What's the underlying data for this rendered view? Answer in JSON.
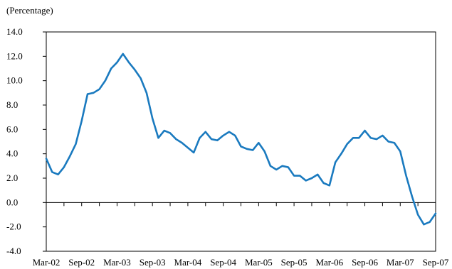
{
  "chart_data": {
    "type": "line",
    "unit_label": "(Percentage)",
    "title": "",
    "xlabel": "",
    "ylabel": "",
    "ylim": [
      -4.0,
      14.0
    ],
    "y_ticks": [
      "14.0",
      "12.0",
      "10.0",
      "8.0",
      "6.0",
      "4.0",
      "2.0",
      "0.0",
      "-2.0",
      "-4.0"
    ],
    "x_tick_labels": [
      "Mar-02",
      "Sep-02",
      "Mar-03",
      "Sep-03",
      "Mar-04",
      "Sep-04",
      "Mar-05",
      "Sep-05",
      "Mar-06",
      "Sep-06",
      "Mar-07",
      "Sep-07"
    ],
    "grid": false,
    "line_color": "#1a7abf",
    "series": [
      {
        "x": [
          "Mar-02",
          "Apr-02",
          "May-02",
          "Jun-02",
          "Jul-02",
          "Aug-02",
          "Sep-02",
          "Oct-02",
          "Nov-02",
          "Dec-02",
          "Jan-03",
          "Feb-03",
          "Mar-03",
          "Apr-03",
          "May-03",
          "Jun-03",
          "Jul-03",
          "Aug-03",
          "Sep-03",
          "Oct-03",
          "Nov-03",
          "Dec-03",
          "Jan-04",
          "Feb-04",
          "Mar-04",
          "Apr-04",
          "May-04",
          "Jun-04",
          "Jul-04",
          "Aug-04",
          "Sep-04",
          "Oct-04",
          "Nov-04",
          "Dec-04",
          "Jan-05",
          "Feb-05",
          "Mar-05",
          "Apr-05",
          "May-05",
          "Jun-05",
          "Jul-05",
          "Aug-05",
          "Sep-05",
          "Oct-05",
          "Nov-05",
          "Dec-05",
          "Jan-06",
          "Feb-06",
          "Mar-06",
          "Apr-06",
          "May-06",
          "Jun-06",
          "Jul-06",
          "Aug-06",
          "Sep-06",
          "Oct-06",
          "Nov-06",
          "Dec-06",
          "Jan-07",
          "Feb-07",
          "Mar-07",
          "Apr-07",
          "May-07",
          "Jun-07",
          "Jul-07",
          "Aug-07",
          "Sep-07"
        ],
        "values": [
          3.6,
          2.5,
          2.3,
          2.9,
          3.8,
          4.8,
          6.7,
          8.9,
          9.0,
          9.3,
          10.0,
          11.0,
          11.5,
          12.2,
          11.5,
          10.9,
          10.2,
          9.0,
          6.9,
          5.3,
          5.9,
          5.7,
          5.2,
          4.9,
          4.5,
          4.1,
          5.3,
          5.8,
          5.2,
          5.1,
          5.5,
          5.8,
          5.5,
          4.6,
          4.4,
          4.3,
          4.9,
          4.2,
          3.0,
          2.7,
          3.0,
          2.9,
          2.2,
          2.2,
          1.8,
          2.0,
          2.3,
          1.6,
          1.4,
          3.3,
          4.0,
          4.8,
          5.3,
          5.3,
          5.9,
          5.3,
          5.2,
          5.5,
          5.0,
          4.9,
          4.2,
          2.2,
          0.5,
          -1.0,
          -1.8,
          -1.6,
          -0.9
        ]
      }
    ]
  }
}
